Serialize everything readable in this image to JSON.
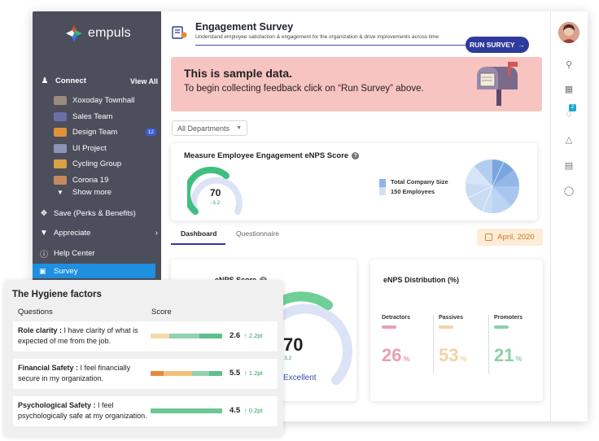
{
  "brand": {
    "name": "empuls"
  },
  "sidebar": {
    "connect_label": "Connect",
    "view_all_label": "View All",
    "channels": [
      {
        "label": "Xoxoday Townhall",
        "color": "#9a8a7a",
        "badge": ""
      },
      {
        "label": "Sales Team",
        "color": "#6b6fa8",
        "badge": ""
      },
      {
        "label": "Design Team",
        "color": "#e0913a",
        "badge": "12"
      },
      {
        "label": "UI Project",
        "color": "#8d93b5",
        "badge": ""
      },
      {
        "label": "Cycling Group",
        "color": "#d9a241",
        "badge": ""
      },
      {
        "label": "Corona 19",
        "color": "#c48a5e",
        "badge": ""
      }
    ],
    "show_more_label": "Show more",
    "nav": [
      {
        "label": "Save (Perks & Benefits)",
        "icon": "tag-icon"
      },
      {
        "label": "Appreciate",
        "icon": "trophy-icon"
      },
      {
        "label": "Help Center",
        "icon": "help-icon"
      }
    ],
    "active_label": "Survey"
  },
  "header": {
    "title": "Engagement Survey",
    "subtitle": "Understand employee satisfaction & engagement for the organization & drive improvements across time",
    "run_button": "RUN SURVEY",
    "run_arrow": "→"
  },
  "banner": {
    "title": "This is sample data.",
    "text": "To begin collecting feedback click on “Run Survey” above."
  },
  "filter": {
    "department": "All Departments"
  },
  "enps_card": {
    "title": "Measure Employee Engagement eNPS Score",
    "score": "70",
    "delta": "↑3.2",
    "legend_line1": "Total Company Size",
    "legend_line2": "150 Employees"
  },
  "tabs": [
    {
      "label": "Dashboard",
      "active": true
    },
    {
      "label": "Questionnaire",
      "active": false
    }
  ],
  "date_filter": "April, 2020",
  "score_card": {
    "title": "eNPS Score",
    "score": "70",
    "delta": "↑3.2",
    "rating": "Excellent"
  },
  "distribution": {
    "title": "eNPS Distribution (%)",
    "items": [
      {
        "label": "Detractors",
        "value": "26",
        "unit": "%",
        "color": "#e7a0b2"
      },
      {
        "label": "Passives",
        "value": "53",
        "unit": "%",
        "color": "#f2d3a6"
      },
      {
        "label": "Promoters",
        "value": "21",
        "unit": "%",
        "color": "#8ad0a8"
      }
    ]
  },
  "hygiene": {
    "title": "The Hygiene factors",
    "col_questions": "Questions",
    "col_score": "Score",
    "rows": [
      {
        "bold": "Role clarity :",
        "text": " I have clarity of what is expected of me from the job.",
        "score": "2.6",
        "delta": "↑ 2.2pt",
        "segments": [
          [
            "#f6d9a6",
            0.26
          ],
          [
            "#8fd3b0",
            0.42
          ],
          [
            "#5fbf8c",
            0.32
          ]
        ]
      },
      {
        "bold": "Financial Safety :",
        "text": " I feel financially secure in my organization.",
        "score": "5.5",
        "delta": "↑ 1.2pt",
        "segments": [
          [
            "#e7893a",
            0.18
          ],
          [
            "#f2c07a",
            0.4
          ],
          [
            "#8fd3b0",
            0.24
          ],
          [
            "#5fbf8c",
            0.18
          ]
        ]
      },
      {
        "bold": "Psychological Safety :",
        "text": " I feel psychologically safe at my organization.",
        "score": "4.5",
        "delta": "↑ 0.2pt",
        "segments": [
          [
            "#6cc795",
            1.0
          ]
        ]
      }
    ]
  },
  "rail": {
    "notification_count": "2"
  }
}
